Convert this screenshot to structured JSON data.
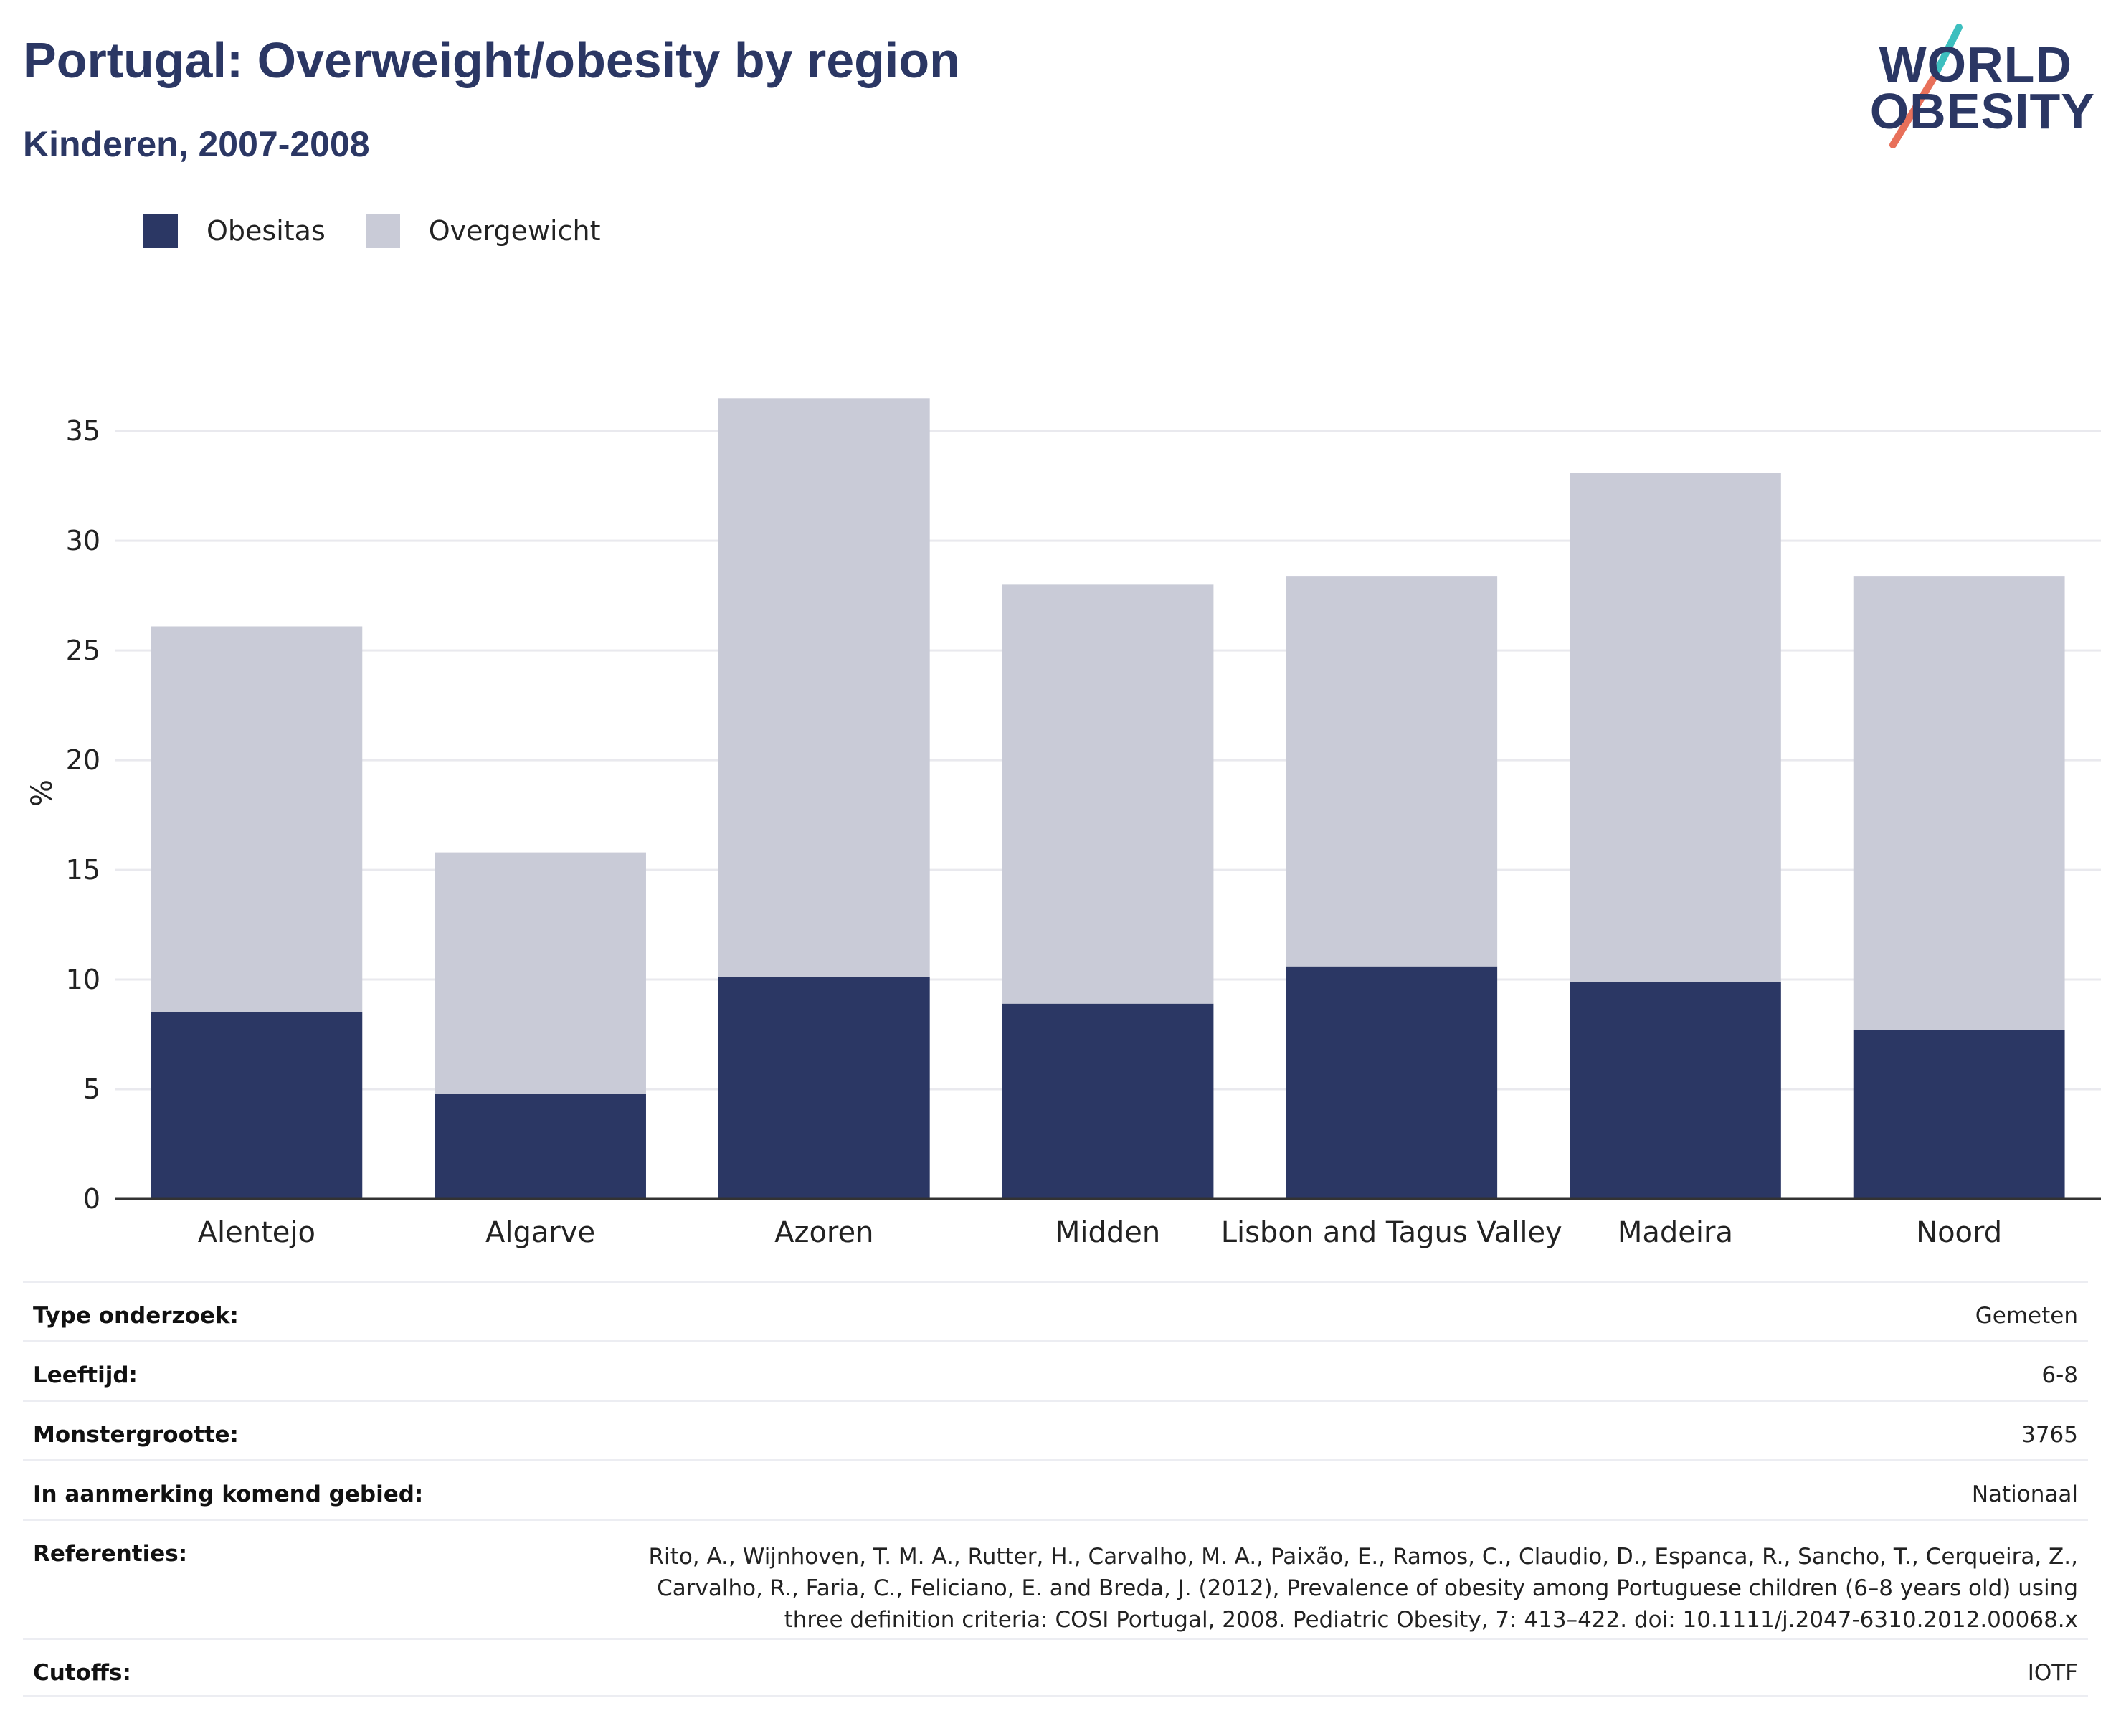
{
  "header": {
    "title": "Portugal: Overweight/obesity by region",
    "subtitle": "Kinderen, 2007-2008"
  },
  "logo": {
    "line1": "WORLD",
    "line2": "OBESITY",
    "accent_top": "#3dbfbf",
    "accent_bottom": "#e8705a"
  },
  "colors": {
    "obesitas": "#2b3764",
    "overgewicht": "#c9cbd7",
    "grid": "#e9e9ee",
    "axis": "#333333"
  },
  "chart_data": {
    "type": "bar",
    "stacked": true,
    "categories": [
      "Alentejo",
      "Algarve",
      "Azoren",
      "Midden",
      "Lisbon and Tagus Valley",
      "Madeira",
      "Noord"
    ],
    "series": [
      {
        "name": "Obesitas",
        "values": [
          8.5,
          4.8,
          10.1,
          8.9,
          10.6,
          9.9,
          7.7
        ]
      },
      {
        "name": "Overgewicht",
        "values": [
          17.6,
          11.0,
          26.4,
          19.1,
          17.8,
          23.2,
          20.7
        ]
      }
    ],
    "ylabel": "%",
    "ylim": [
      0,
      37
    ],
    "yticks": [
      0,
      5,
      10,
      15,
      20,
      25,
      30,
      35
    ],
    "grid": true,
    "legend_position": "top-left"
  },
  "info": [
    {
      "label": "Type onderzoek:",
      "value": "Gemeten"
    },
    {
      "label": "Leeftijd:",
      "value": "6-8"
    },
    {
      "label": "Monstergrootte:",
      "value": "3765"
    },
    {
      "label": "In aanmerking komend gebied:",
      "value": "Nationaal"
    },
    {
      "label": "Referenties:",
      "value": "Rito, A., Wijnhoven, T. M. A., Rutter, H., Carvalho, M. A., Paixão, E., Ramos, C., Claudio, D., Espanca, R., Sancho, T., Cerqueira, Z., Carvalho, R., Faria, C., Feliciano, E. and Breda, J. (2012), Prevalence of obesity among Portuguese children (6–8 years old) using three definition criteria: COSI Portugal, 2008. Pediatric Obesity, 7: 413–422. doi: 10.1111/j.2047-6310.2012.00068.x"
    },
    {
      "label": "Cutoffs:",
      "value": "IOTF"
    }
  ]
}
